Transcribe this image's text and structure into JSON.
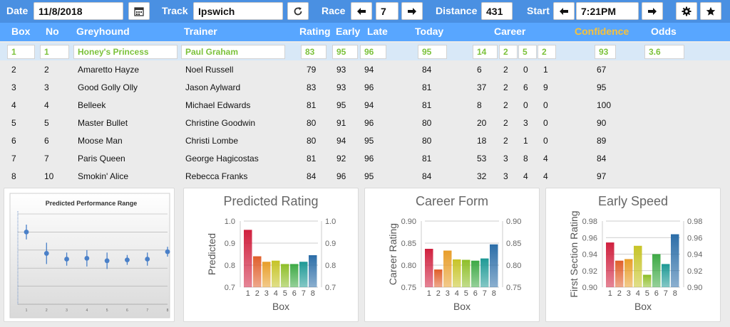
{
  "toolbar": {
    "date_label": "Date",
    "date_value": "11/8/2018",
    "track_label": "Track",
    "track_value": "Ipswich",
    "race_label": "Race",
    "race_value": "7",
    "distance_label": "Distance",
    "distance_value": "431",
    "start_label": "Start",
    "start_value": "7:21PM",
    "icons": [
      "calendar-icon",
      "refresh-icon",
      "arrow-left-icon",
      "arrow-right-icon",
      "gear-icon",
      "star-icon"
    ]
  },
  "columns": {
    "box": "Box",
    "no": "No",
    "greyhound": "Greyhound",
    "trainer": "Trainer",
    "rating": "Rating",
    "early": "Early",
    "late": "Late",
    "today": "Today",
    "career": "Career",
    "confidence": "Confidence",
    "odds": "Odds"
  },
  "rows": [
    {
      "box": "1",
      "no": "1",
      "name": "Honey's Princess",
      "trainer": "Paul Graham",
      "rating": "83",
      "early": "95",
      "late": "96",
      "today": "95",
      "c1": "14",
      "c2": "2",
      "c3": "5",
      "c4": "2",
      "confidence": "93",
      "odds": "3.6"
    },
    {
      "box": "2",
      "no": "2",
      "name": "Amaretto Hayze",
      "trainer": "Noel Russell",
      "rating": "79",
      "early": "93",
      "late": "94",
      "today": "84",
      "c1": "6",
      "c2": "2",
      "c3": "0",
      "c4": "1",
      "confidence": "67",
      "odds": ""
    },
    {
      "box": "3",
      "no": "3",
      "name": "Good Golly Olly",
      "trainer": "Jason Aylward",
      "rating": "83",
      "early": "93",
      "late": "96",
      "today": "81",
      "c1": "37",
      "c2": "2",
      "c3": "6",
      "c4": "9",
      "confidence": "95",
      "odds": ""
    },
    {
      "box": "4",
      "no": "4",
      "name": "Belleek",
      "trainer": "Michael Edwards",
      "rating": "81",
      "early": "95",
      "late": "94",
      "today": "81",
      "c1": "8",
      "c2": "2",
      "c3": "0",
      "c4": "0",
      "confidence": "100",
      "odds": ""
    },
    {
      "box": "5",
      "no": "5",
      "name": "Master Bullet",
      "trainer": "Christine Goodwin",
      "rating": "80",
      "early": "91",
      "late": "96",
      "today": "80",
      "c1": "20",
      "c2": "2",
      "c3": "3",
      "c4": "0",
      "confidence": "90",
      "odds": ""
    },
    {
      "box": "6",
      "no": "6",
      "name": "Moose Man",
      "trainer": "Christi Lombe",
      "rating": "80",
      "early": "94",
      "late": "95",
      "today": "80",
      "c1": "18",
      "c2": "2",
      "c3": "1",
      "c4": "0",
      "confidence": "89",
      "odds": ""
    },
    {
      "box": "7",
      "no": "7",
      "name": "Paris Queen",
      "trainer": "George Hagicostas",
      "rating": "81",
      "early": "92",
      "late": "96",
      "today": "81",
      "c1": "53",
      "c2": "3",
      "c3": "8",
      "c4": "4",
      "confidence": "84",
      "odds": ""
    },
    {
      "box": "8",
      "no": "10",
      "name": "Smokin' Alice",
      "trainer": "Rebecca Franks",
      "rating": "84",
      "early": "96",
      "late": "95",
      "today": "84",
      "c1": "32",
      "c2": "3",
      "c3": "4",
      "c4": "4",
      "confidence": "97",
      "odds": ""
    }
  ],
  "colors": {
    "toolbar": "#4a90e2",
    "header": "#58a6ff",
    "selected_row": "#d8e8f7",
    "selected_text": "#7cc23b",
    "confidence_header": "#f8c23a",
    "point": "#4a80c8",
    "bars": [
      "#d0213f",
      "#e0602c",
      "#e89e2a",
      "#c7c428",
      "#8fbf2a",
      "#3faa46",
      "#1f9a96",
      "#2c6ea8"
    ]
  },
  "chart_data": [
    {
      "type": "scatter",
      "title": "Predicted Performance Range",
      "x": [
        1,
        2,
        3,
        4,
        5,
        6,
        7,
        8
      ],
      "y": [
        0.88,
        0.62,
        0.55,
        0.56,
        0.53,
        0.54,
        0.55,
        0.64
      ],
      "yerr": [
        0.09,
        0.13,
        0.08,
        0.1,
        0.1,
        0.06,
        0.08,
        0.06
      ],
      "ylim": [
        0,
        1.1
      ],
      "xlabel": "",
      "ylabel": "",
      "grid": true
    },
    {
      "type": "bar",
      "title": "Predicted Rating",
      "categories": [
        "1",
        "2",
        "3",
        "4",
        "5",
        "6",
        "7",
        "8"
      ],
      "values": [
        0.96,
        0.84,
        0.815,
        0.82,
        0.805,
        0.805,
        0.815,
        0.845
      ],
      "ylim": [
        0.7,
        1.0
      ],
      "ticks": [
        "1.0",
        "0.9",
        "0.8",
        "0.7"
      ],
      "xlabel": "Box",
      "ylabel": "Predicted",
      "grid": true
    },
    {
      "type": "bar",
      "title": "Career Form",
      "categories": [
        "1",
        "2",
        "3",
        "4",
        "5",
        "6",
        "7",
        "8"
      ],
      "values": [
        0.837,
        0.79,
        0.833,
        0.813,
        0.812,
        0.81,
        0.815,
        0.847
      ],
      "ylim": [
        0.75,
        0.9
      ],
      "ticks": [
        "0.90",
        "0.85",
        "0.80",
        "0.75"
      ],
      "xlabel": "Box",
      "ylabel": "Career Rating",
      "grid": true
    },
    {
      "type": "bar",
      "title": "Early Speed",
      "categories": [
        "1",
        "2",
        "3",
        "4",
        "5",
        "6",
        "7",
        "8"
      ],
      "values": [
        0.954,
        0.932,
        0.934,
        0.95,
        0.915,
        0.94,
        0.928,
        0.964
      ],
      "ylim": [
        0.9,
        0.98
      ],
      "ticks": [
        "0.98",
        "0.96",
        "0.94",
        "0.92",
        "0.90"
      ],
      "xlabel": "Box",
      "ylabel": "First Section Rating",
      "grid": true
    }
  ]
}
